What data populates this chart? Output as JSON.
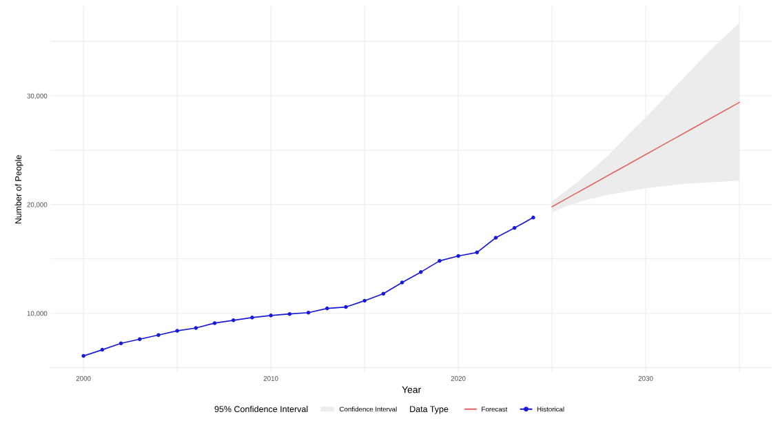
{
  "chart_data": {
    "type": "line",
    "xlabel": "Year",
    "ylabel": "Number of People",
    "legend_title": "Data Type",
    "annotations": [
      "95% Confidence Interval",
      "Confidence Interval"
    ],
    "series": [
      {
        "name": "Forecast",
        "color": "#e06666",
        "marker": "none",
        "x": [
          2025,
          2026,
          2027,
          2028,
          2029,
          2030,
          2031,
          2032,
          2033,
          2034,
          2035
        ],
        "values": [
          19800,
          20760,
          21720,
          22680,
          23640,
          24600,
          25560,
          26520,
          27480,
          28440,
          29400
        ],
        "lower": [
          19300,
          20000,
          20500,
          20900,
          21200,
          21500,
          21700,
          21900,
          22000,
          22100,
          22200
        ],
        "upper": [
          20300,
          21600,
          23000,
          24500,
          26300,
          28000,
          29800,
          31600,
          33400,
          35100,
          36700
        ]
      },
      {
        "name": "Historical",
        "color": "#1a1ad6",
        "marker": "circle",
        "x": [
          2000,
          2001,
          2002,
          2003,
          2004,
          2005,
          2006,
          2007,
          2008,
          2009,
          2010,
          2011,
          2012,
          2013,
          2014,
          2015,
          2016,
          2017,
          2018,
          2019,
          2020,
          2021,
          2022,
          2023,
          2024
        ],
        "values": [
          6080,
          6650,
          7240,
          7620,
          8000,
          8390,
          8650,
          9100,
          9360,
          9610,
          9800,
          9940,
          10060,
          10450,
          10580,
          11160,
          11800,
          12830,
          13790,
          14820,
          15270,
          15600,
          16950,
          17850,
          18810
        ]
      }
    ],
    "xlim": [
      1998.25,
      2036.75
    ],
    "ylim": [
      4550,
      38230
    ],
    "xticks": [
      2000,
      {
        "value": 2005,
        "label": null
      },
      2010,
      {
        "value": 2015,
        "label": null
      },
      2020,
      {
        "value": 2025,
        "label": null
      },
      2030,
      {
        "value": 2035,
        "label": null
      }
    ],
    "yticks": [
      {
        "value": 5000,
        "label": null
      },
      {
        "value": 10000,
        "label": "10,000"
      },
      {
        "value": 15000,
        "label": null
      },
      {
        "value": 20000,
        "label": "20,000"
      },
      {
        "value": 25000,
        "label": null
      },
      {
        "value": 30000,
        "label": "30,000"
      },
      {
        "value": 35000,
        "label": null
      }
    ],
    "grid": true,
    "legend": "bottom"
  }
}
